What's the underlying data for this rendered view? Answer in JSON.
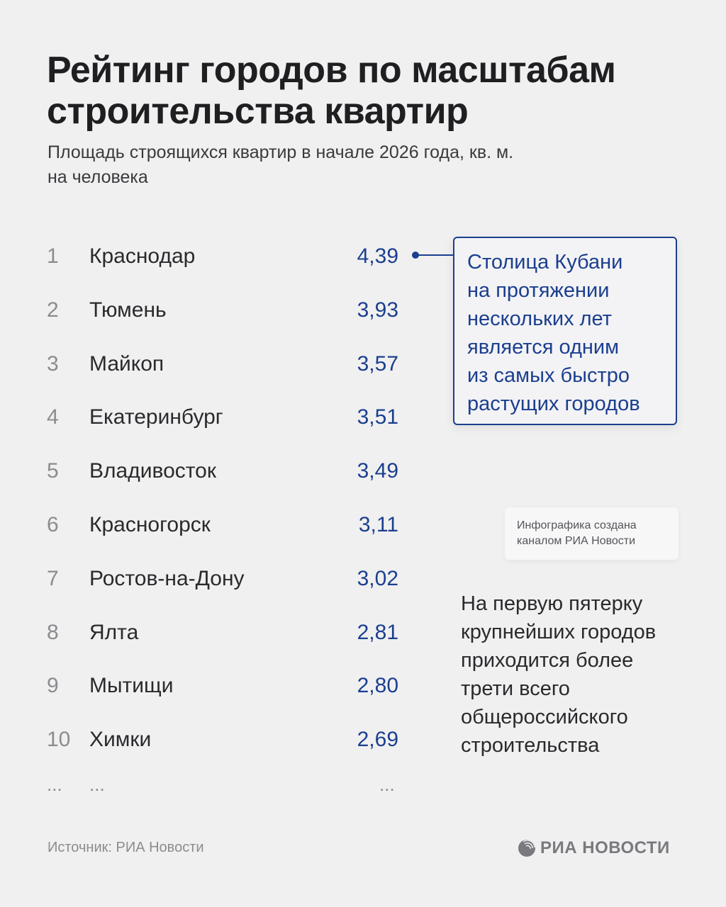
{
  "header": {
    "title_line1": "Рейтинг городов по масштабам",
    "title_line2": "строительства квартир",
    "subtitle_line1": "Площадь строящихся квартир в начале 2026 года, кв. м.",
    "subtitle_line2": "на человека"
  },
  "chart_data": {
    "type": "table",
    "title": "Рейтинг городов по масштабам строительства квартир",
    "subtitle": "Площадь строящихся квартир в начале 2026 года, кв. м. на человека",
    "columns": [
      "rank",
      "city",
      "value"
    ],
    "rows": [
      {
        "rank": "1",
        "city": "Краснодар",
        "value": "4,39"
      },
      {
        "rank": "2",
        "city": "Тюмень",
        "value": "3,93"
      },
      {
        "rank": "3",
        "city": "Майкоп",
        "value": "3,57"
      },
      {
        "rank": "4",
        "city": "Екатеринбург",
        "value": "3,51"
      },
      {
        "rank": "5",
        "city": "Владивосток",
        "value": "3,49"
      },
      {
        "rank": "6",
        "city": "Красногорск",
        "value": "3,11"
      },
      {
        "rank": "7",
        "city": "Ростов-на-Дону",
        "value": "3,02"
      },
      {
        "rank": "8",
        "city": "Ялта",
        "value": "2,81"
      },
      {
        "rank": "9",
        "city": "Мытищи",
        "value": "2,80"
      },
      {
        "rank": "10",
        "city": "Химки",
        "value": "2,69"
      }
    ],
    "ellipsis": "...",
    "annotation": "Столица Кубани на протяжении нескольких лет является одним из самых быстро растущих городов",
    "accent_color": "#1b3f8f"
  },
  "callout": {
    "lines": [
      "Столица Кубани",
      "на протяжении",
      "нескольких лет",
      "является одним",
      "из самых быстро",
      "растущих городов"
    ]
  },
  "credit": {
    "line1": "Инфографика создана",
    "line2": "каналом РИА Новости"
  },
  "note": {
    "lines": [
      "На первую пятерку",
      "крупнейших городов",
      "приходится более",
      "трети всего",
      "общероссийского",
      "строительства"
    ]
  },
  "footer": {
    "source": "Источник: РИА Новости",
    "logo_text": "РИА НОВОСТИ",
    "logo_icon": "globe-icon"
  }
}
